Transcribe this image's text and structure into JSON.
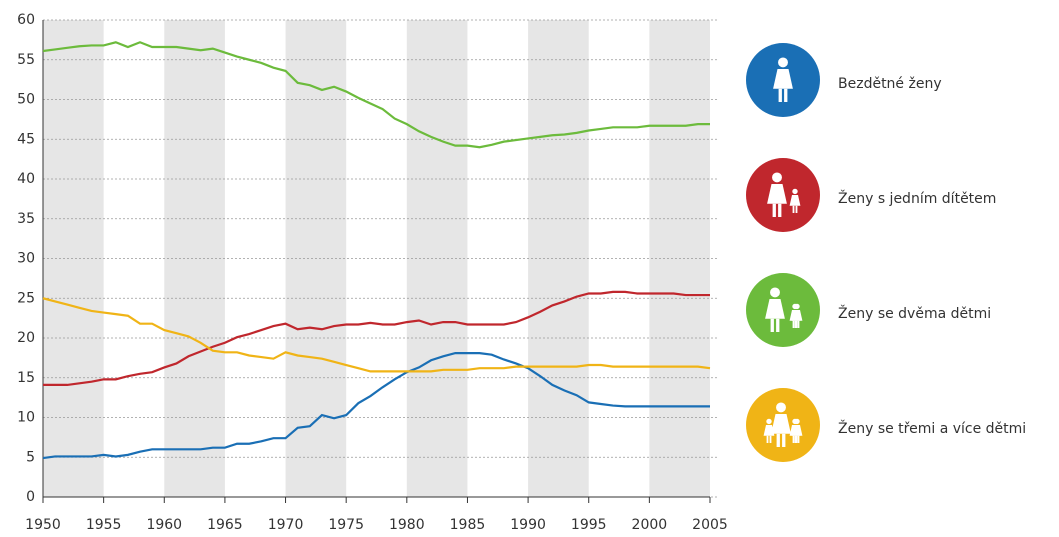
{
  "chart_data": {
    "type": "line",
    "x": [
      1950,
      1951,
      1952,
      1953,
      1954,
      1955,
      1956,
      1957,
      1958,
      1959,
      1960,
      1961,
      1962,
      1963,
      1964,
      1965,
      1966,
      1967,
      1968,
      1969,
      1970,
      1971,
      1972,
      1973,
      1974,
      1975,
      1976,
      1977,
      1978,
      1979,
      1980,
      1981,
      1982,
      1983,
      1984,
      1985,
      1986,
      1987,
      1988,
      1989,
      1990,
      1991,
      1992,
      1993,
      1994,
      1995,
      1996,
      1997,
      1998,
      1999,
      2000,
      2001,
      2002,
      2003,
      2004,
      2005
    ],
    "series": [
      {
        "name": "Bezdětné ženy",
        "color": "#1a6fb5",
        "values": [
          4.9,
          5.1,
          5.1,
          5.1,
          5.1,
          5.3,
          5.1,
          5.3,
          5.7,
          6.0,
          6.0,
          6.0,
          6.0,
          6.0,
          6.2,
          6.2,
          6.7,
          6.7,
          7.0,
          7.4,
          7.4,
          8.7,
          8.9,
          10.3,
          9.9,
          10.3,
          11.8,
          12.7,
          13.8,
          14.8,
          15.7,
          16.3,
          17.2,
          17.7,
          18.1,
          18.1,
          18.1,
          17.9,
          17.3,
          16.8,
          16.2,
          15.2,
          14.1,
          13.4,
          12.8,
          11.9,
          11.7,
          11.5,
          11.4,
          11.4,
          11.4,
          11.4,
          11.4,
          11.4,
          11.4,
          11.4
        ]
      },
      {
        "name": "Ženy s jedním dítětem",
        "color": "#c0272d",
        "values": [
          14.1,
          14.1,
          14.1,
          14.3,
          14.5,
          14.8,
          14.8,
          15.2,
          15.5,
          15.7,
          16.3,
          16.8,
          17.7,
          18.3,
          18.9,
          19.4,
          20.1,
          20.5,
          21.0,
          21.5,
          21.8,
          21.1,
          21.3,
          21.1,
          21.5,
          21.7,
          21.7,
          21.9,
          21.7,
          21.7,
          22.0,
          22.2,
          21.7,
          22.0,
          22.0,
          21.7,
          21.7,
          21.7,
          21.7,
          22.0,
          22.6,
          23.3,
          24.1,
          24.6,
          25.2,
          25.6,
          25.6,
          25.8,
          25.8,
          25.6,
          25.6,
          25.6,
          25.6,
          25.4,
          25.4,
          25.4
        ]
      },
      {
        "name": "Ženy se dvěma dětmi",
        "color": "#6cbb3c",
        "values": [
          56.1,
          56.3,
          56.5,
          56.7,
          56.8,
          56.8,
          57.2,
          56.6,
          57.2,
          56.6,
          56.6,
          56.6,
          56.4,
          56.2,
          56.4,
          55.9,
          55.4,
          55.0,
          54.6,
          54.0,
          53.6,
          52.1,
          51.8,
          51.2,
          51.6,
          51.0,
          50.2,
          49.5,
          48.8,
          47.6,
          46.9,
          46.0,
          45.3,
          44.7,
          44.2,
          44.2,
          44.0,
          44.3,
          44.7,
          44.9,
          45.1,
          45.3,
          45.5,
          45.6,
          45.8,
          46.1,
          46.3,
          46.5,
          46.5,
          46.5,
          46.7,
          46.7,
          46.7,
          46.7,
          46.9,
          46.9
        ]
      },
      {
        "name": "Ženy se třemi a více dětmi",
        "color": "#f0b416",
        "values": [
          25.0,
          24.6,
          24.2,
          23.8,
          23.4,
          23.2,
          23.0,
          22.8,
          21.8,
          21.8,
          21.0,
          20.6,
          20.2,
          19.4,
          18.4,
          18.2,
          18.2,
          17.8,
          17.6,
          17.4,
          18.2,
          17.8,
          17.6,
          17.4,
          17.0,
          16.6,
          16.2,
          15.8,
          15.8,
          15.8,
          15.8,
          15.8,
          15.8,
          16.0,
          16.0,
          16.0,
          16.2,
          16.2,
          16.2,
          16.4,
          16.4,
          16.4,
          16.4,
          16.4,
          16.4,
          16.6,
          16.6,
          16.4,
          16.4,
          16.4,
          16.4,
          16.4,
          16.4,
          16.4,
          16.4,
          16.2
        ]
      }
    ],
    "xlim": [
      1950,
      2005
    ],
    "xticks": [
      1950,
      1955,
      1960,
      1965,
      1970,
      1975,
      1980,
      1985,
      1990,
      1995,
      2000,
      2005
    ],
    "ylim": [
      0,
      60
    ],
    "yticks": [
      0,
      5,
      10,
      15,
      20,
      25,
      30,
      35,
      40,
      45,
      50,
      55,
      60
    ],
    "grid": true,
    "legend": "right"
  }
}
